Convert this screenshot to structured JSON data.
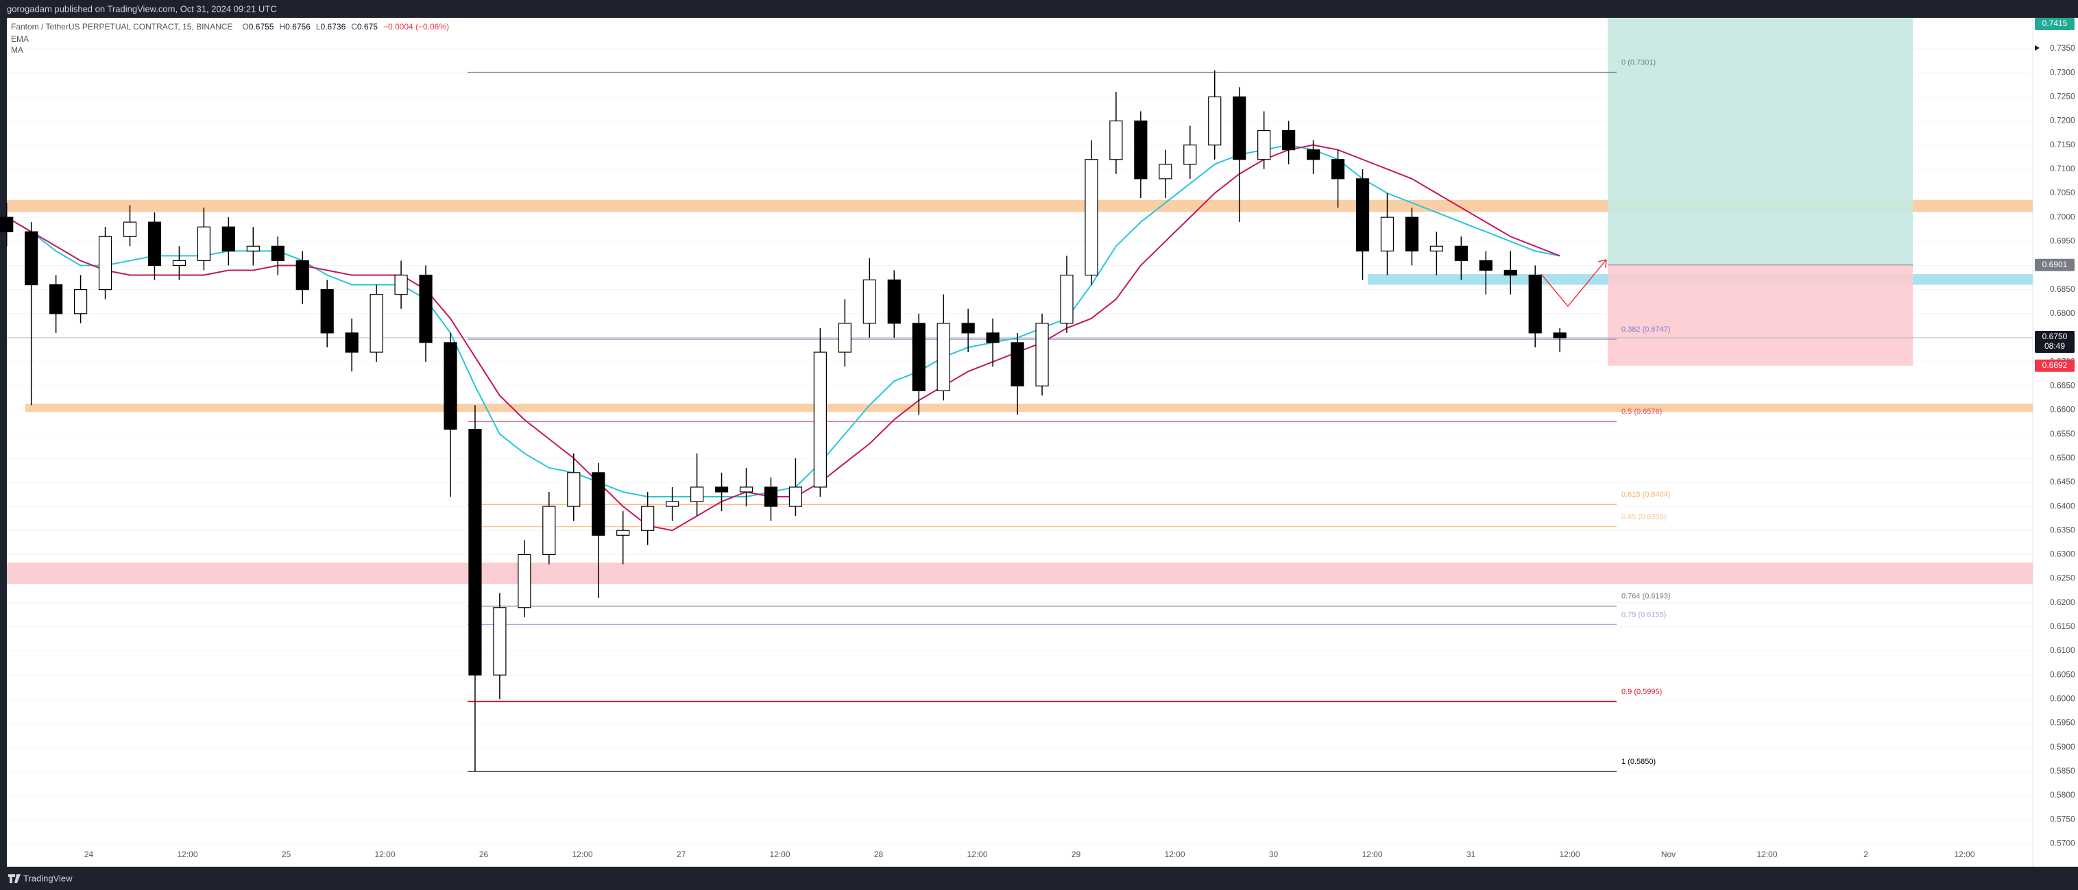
{
  "header": "gorogadam published on TradingView.com, Oct 31, 2024 09:21 UTC",
  "footer": "TradingView",
  "chart_data": {
    "type": "candlestick",
    "legend": {
      "symbol": "Fantom / TetherUS PERPETUAL CONTRACT, 15, BINANCE",
      "ohlc": [
        {
          "key": "O",
          "value": 0.6755
        },
        {
          "key": "H",
          "value": 0.6756
        },
        {
          "key": "L",
          "value": 0.6736
        },
        {
          "key": "C",
          "value": 0.675
        }
      ],
      "change": "−0.0004 (−0.06%)",
      "indicators": [
        "EMA",
        "MA"
      ]
    },
    "time_labels": [
      "24",
      "12:00",
      "25",
      "12:00",
      "26",
      "12:00",
      "27",
      "12:00",
      "28",
      "12:00",
      "29",
      "12:00",
      "30",
      "12:00",
      "31",
      "12:00",
      "Nov",
      "12:00",
      "2",
      "12:00"
    ],
    "open": [
      0.7,
      0.697,
      0.686,
      0.68,
      0.685,
      0.696,
      0.699,
      0.69,
      0.691,
      0.698,
      0.693,
      0.694,
      0.691,
      0.685,
      0.676,
      0.672,
      0.684,
      0.688,
      0.674,
      0.656,
      0.605,
      0.619,
      0.63,
      0.64,
      0.647,
      0.634,
      0.635,
      0.64,
      0.641,
      0.644,
      0.643,
      0.644,
      0.64,
      0.644,
      0.672,
      0.678,
      0.687,
      0.678,
      0.664,
      0.678,
      0.676,
      0.674,
      0.665,
      0.678,
      0.688,
      0.712,
      0.72,
      0.708,
      0.711,
      0.715,
      0.725,
      0.712,
      0.718,
      0.714,
      0.712,
      0.708,
      0.693,
      0.7,
      0.693,
      0.694,
      0.691,
      0.689,
      0.688,
      0.676
    ],
    "high": [
      0.703,
      0.699,
      0.688,
      0.688,
      0.698,
      0.7025,
      0.701,
      0.694,
      0.702,
      0.7,
      0.698,
      0.696,
      0.693,
      0.687,
      0.679,
      0.686,
      0.691,
      0.69,
      0.676,
      0.661,
      0.622,
      0.633,
      0.643,
      0.651,
      0.649,
      0.639,
      0.643,
      0.644,
      0.651,
      0.647,
      0.648,
      0.646,
      0.65,
      0.677,
      0.683,
      0.6915,
      0.689,
      0.68,
      0.684,
      0.681,
      0.679,
      0.676,
      0.68,
      0.692,
      0.716,
      0.726,
      0.722,
      0.714,
      0.719,
      0.7305,
      0.727,
      0.722,
      0.72,
      0.716,
      0.714,
      0.71,
      0.705,
      0.702,
      0.697,
      0.696,
      0.693,
      0.693,
      0.69,
      0.677
    ],
    "low": [
      0.694,
      0.661,
      0.676,
      0.678,
      0.683,
      0.694,
      0.687,
      0.687,
      0.689,
      0.69,
      0.69,
      0.688,
      0.682,
      0.673,
      0.668,
      0.67,
      0.681,
      0.67,
      0.642,
      0.585,
      0.6,
      0.617,
      0.628,
      0.637,
      0.621,
      0.628,
      0.632,
      0.637,
      0.638,
      0.639,
      0.64,
      0.637,
      0.638,
      0.642,
      0.669,
      0.675,
      0.675,
      0.659,
      0.662,
      0.672,
      0.669,
      0.659,
      0.663,
      0.676,
      0.686,
      0.709,
      0.704,
      0.704,
      0.708,
      0.712,
      0.699,
      0.71,
      0.711,
      0.709,
      0.702,
      0.687,
      0.688,
      0.69,
      0.688,
      0.687,
      0.684,
      0.684,
      0.673,
      0.672
    ],
    "close": [
      0.697,
      0.686,
      0.68,
      0.685,
      0.696,
      0.699,
      0.69,
      0.691,
      0.698,
      0.693,
      0.694,
      0.691,
      0.685,
      0.676,
      0.672,
      0.684,
      0.688,
      0.674,
      0.656,
      0.605,
      0.619,
      0.63,
      0.64,
      0.647,
      0.634,
      0.635,
      0.64,
      0.641,
      0.644,
      0.643,
      0.644,
      0.64,
      0.644,
      0.672,
      0.678,
      0.687,
      0.678,
      0.664,
      0.678,
      0.676,
      0.674,
      0.665,
      0.678,
      0.688,
      0.712,
      0.72,
      0.708,
      0.711,
      0.715,
      0.725,
      0.712,
      0.718,
      0.714,
      0.712,
      0.708,
      0.693,
      0.7,
      0.693,
      0.694,
      0.691,
      0.689,
      0.688,
      0.676,
      0.675
    ],
    "up_color": "#ffffff",
    "down_color": "#000000",
    "outline_color": "#000000",
    "series": [
      {
        "name": "EMA",
        "color": "#26c6da",
        "values": [
          0.7,
          0.697,
          0.693,
          0.69,
          0.69,
          0.691,
          0.692,
          0.692,
          0.692,
          0.693,
          0.693,
          0.693,
          0.691,
          0.688,
          0.686,
          0.686,
          0.686,
          0.683,
          0.676,
          0.665,
          0.655,
          0.651,
          0.648,
          0.647,
          0.645,
          0.643,
          0.642,
          0.642,
          0.642,
          0.642,
          0.642,
          0.643,
          0.644,
          0.649,
          0.655,
          0.661,
          0.666,
          0.668,
          0.671,
          0.673,
          0.674,
          0.675,
          0.677,
          0.679,
          0.686,
          0.694,
          0.699,
          0.703,
          0.707,
          0.711,
          0.713,
          0.714,
          0.715,
          0.714,
          0.712,
          0.708,
          0.705,
          0.703,
          0.701,
          0.699,
          0.697,
          0.695,
          0.693,
          0.692
        ]
      },
      {
        "name": "MA",
        "color": "#c2185b",
        "values": [
          0.7,
          0.697,
          0.694,
          0.691,
          0.689,
          0.688,
          0.688,
          0.688,
          0.688,
          0.689,
          0.689,
          0.69,
          0.69,
          0.689,
          0.688,
          0.688,
          0.688,
          0.685,
          0.679,
          0.671,
          0.663,
          0.658,
          0.654,
          0.65,
          0.645,
          0.64,
          0.636,
          0.635,
          0.638,
          0.641,
          0.643,
          0.642,
          0.642,
          0.645,
          0.649,
          0.653,
          0.658,
          0.662,
          0.665,
          0.668,
          0.67,
          0.672,
          0.674,
          0.677,
          0.679,
          0.683,
          0.69,
          0.695,
          0.7,
          0.705,
          0.709,
          0.712,
          0.714,
          0.715,
          0.714,
          0.712,
          0.71,
          0.708,
          0.705,
          0.702,
          0.699,
          0.696,
          0.694,
          0.692
        ]
      }
    ],
    "ylim": [
      0.5655,
      0.7414
    ],
    "yticks": [
      {
        "value": 0.57,
        "label": "0.5700"
      },
      {
        "value": 0.575,
        "label": "0.5750"
      },
      {
        "value": 0.58,
        "label": "0.5800"
      },
      {
        "value": 0.585,
        "label": "0.5850"
      },
      {
        "value": 0.59,
        "label": "0.5900"
      },
      {
        "value": 0.595,
        "label": "0.5950"
      },
      {
        "value": 0.6,
        "label": "0.6000"
      },
      {
        "value": 0.605,
        "label": "0.6050"
      },
      {
        "value": 0.61,
        "label": "0.6100"
      },
      {
        "value": 0.615,
        "label": "0.6150"
      },
      {
        "value": 0.62,
        "label": "0.6200"
      },
      {
        "value": 0.625,
        "label": "0.6250"
      },
      {
        "value": 0.63,
        "label": "0.6300"
      },
      {
        "value": 0.635,
        "label": "0.6350"
      },
      {
        "value": 0.64,
        "label": "0.6400"
      },
      {
        "value": 0.645,
        "label": "0.6450"
      },
      {
        "value": 0.65,
        "label": "0.6500"
      },
      {
        "value": 0.655,
        "label": "0.6550"
      },
      {
        "value": 0.66,
        "label": "0.6600"
      },
      {
        "value": 0.665,
        "label": "0.6650"
      },
      {
        "value": 0.67,
        "label": "0.6700"
      },
      {
        "value": 0.675,
        "label": "0.6750"
      },
      {
        "value": 0.68,
        "label": "0.6800"
      },
      {
        "value": 0.685,
        "label": "0.6850"
      },
      {
        "value": 0.69,
        "label": "0.6900"
      },
      {
        "value": 0.695,
        "label": "0.6950"
      },
      {
        "value": 0.7,
        "label": "0.7000"
      },
      {
        "value": 0.705,
        "label": "0.7050"
      },
      {
        "value": 0.71,
        "label": "0.7100"
      },
      {
        "value": 0.715,
        "label": "0.7150"
      },
      {
        "value": 0.72,
        "label": "0.7200"
      },
      {
        "value": 0.725,
        "label": "0.7250"
      },
      {
        "value": 0.73,
        "label": "0.7300"
      },
      {
        "value": 0.735,
        "label": "0.7350"
      }
    ],
    "zones": [
      {
        "from": 0.7011,
        "to": 0.7036,
        "color": "#f9cfa6"
      },
      {
        "from": 0.6596,
        "to": 0.6613,
        "color": "#f9cfa6"
      },
      {
        "from": 0.6239,
        "to": 0.6283,
        "color": "#f9cdd1"
      },
      {
        "from": 0.686,
        "to": 0.6882,
        "color": "#a8e2ee"
      }
    ],
    "fib_levels": [
      {
        "price": 0.7301,
        "label": "0 (0.7301)",
        "color": "#787b86"
      },
      {
        "price": 0.6747,
        "label": "0.382 (0.6747)",
        "color": "#7e7ecf"
      },
      {
        "price": 0.6576,
        "label": "0.5 (0.6576)",
        "color": "#e0506f"
      },
      {
        "price": 0.6404,
        "label": "0.618 (0.6404)",
        "color": "#f7b26b"
      },
      {
        "price": 0.6358,
        "label": "0.65 (0.6358)",
        "color": "#f9c68f"
      },
      {
        "price": 0.6193,
        "label": "0.764 (0.6193)",
        "color": "#787b86"
      },
      {
        "price": 0.6155,
        "label": "0.79 (0.6155)",
        "color": "#a6a6de"
      },
      {
        "price": 0.5995,
        "label": "0.9 (0.5995)",
        "color": "#e0102a"
      },
      {
        "price": 0.585,
        "label": "1 (0.5850)",
        "color": "#000000"
      }
    ],
    "position": {
      "target": {
        "value": 0.7415,
        "label": "0.7415",
        "color": "#22ab94",
        "zone": "#c5e8e1"
      },
      "entry": {
        "value": 0.6901,
        "label": "0.6901",
        "color": "#787b86"
      },
      "stop": {
        "value": 0.6692,
        "label": "0.6692",
        "color": "#f23645",
        "zone": "#fccbd0"
      }
    },
    "last_price": {
      "value": 0.675,
      "label": "0.6750",
      "countdown": "08:49"
    }
  }
}
